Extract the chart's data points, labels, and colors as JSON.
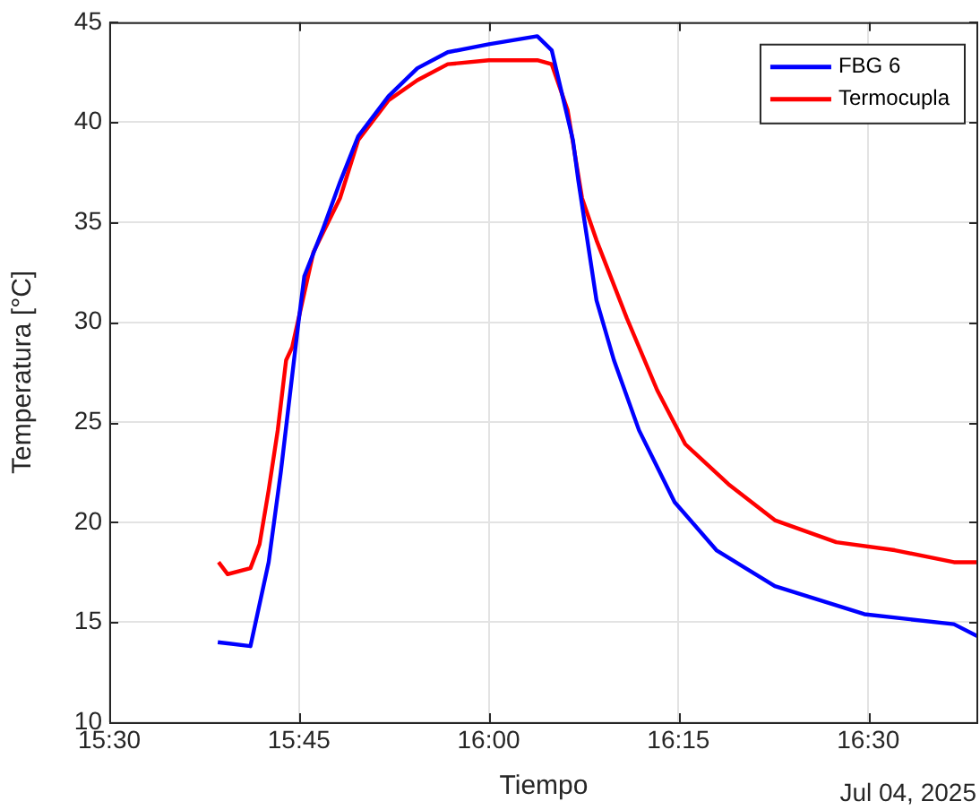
{
  "chart_data": {
    "type": "line",
    "xlabel": "Tiempo",
    "ylabel": "Temperatura [°C]",
    "annotations": [
      "Jul 04, 2025"
    ],
    "xlim": [
      15.5,
      16.645
    ],
    "xticks": [
      {
        "value": 15.5,
        "label": "15:30"
      },
      {
        "value": 15.75,
        "label": "15:45"
      },
      {
        "value": 16,
        "label": "16:00"
      },
      {
        "value": 16.25,
        "label": "16:15"
      },
      {
        "value": 16.5,
        "label": "16:30"
      }
    ],
    "ylim": [
      10,
      45
    ],
    "yticks": [
      10,
      15,
      20,
      25,
      30,
      35,
      40,
      45
    ],
    "grid": true,
    "legend": "top right",
    "marker": "none",
    "line_style": "solid",
    "series": [
      {
        "name": "FBG 6",
        "color": "#0000ff",
        "x": [
          15.643,
          15.686,
          15.71,
          15.726,
          15.749,
          15.757,
          15.781,
          15.804,
          15.828,
          15.868,
          15.906,
          15.946,
          16.0,
          16.064,
          16.083,
          16.111,
          16.118,
          16.142,
          16.165,
          16.198,
          16.245,
          16.3,
          16.377,
          16.495,
          16.613,
          16.644
        ],
        "values": [
          14.0,
          13.8,
          18.0,
          22.5,
          29.9,
          32.3,
          34.6,
          37.0,
          39.3,
          41.3,
          42.7,
          43.5,
          43.9,
          44.3,
          43.6,
          39.1,
          37.1,
          31.1,
          28.1,
          24.6,
          21.0,
          18.6,
          16.8,
          15.4,
          14.9,
          14.3
        ]
      },
      {
        "name": "Termocupla",
        "color": "#ff0000",
        "x": [
          15.644,
          15.656,
          15.686,
          15.698,
          15.71,
          15.722,
          15.733,
          15.741,
          15.769,
          15.804,
          15.828,
          15.868,
          15.906,
          15.946,
          16.0,
          16.064,
          16.083,
          16.104,
          16.123,
          16.142,
          16.182,
          16.222,
          16.259,
          16.316,
          16.377,
          16.458,
          16.535,
          16.613,
          16.644
        ],
        "values": [
          18.0,
          17.4,
          17.7,
          18.9,
          21.6,
          24.6,
          28.1,
          28.75,
          33.5,
          36.2,
          39.1,
          41.1,
          42.1,
          42.9,
          43.1,
          43.1,
          42.9,
          40.6,
          36.2,
          34.1,
          30.2,
          26.6,
          23.9,
          21.9,
          20.1,
          19.0,
          18.6,
          18.0,
          18.0
        ]
      }
    ]
  }
}
